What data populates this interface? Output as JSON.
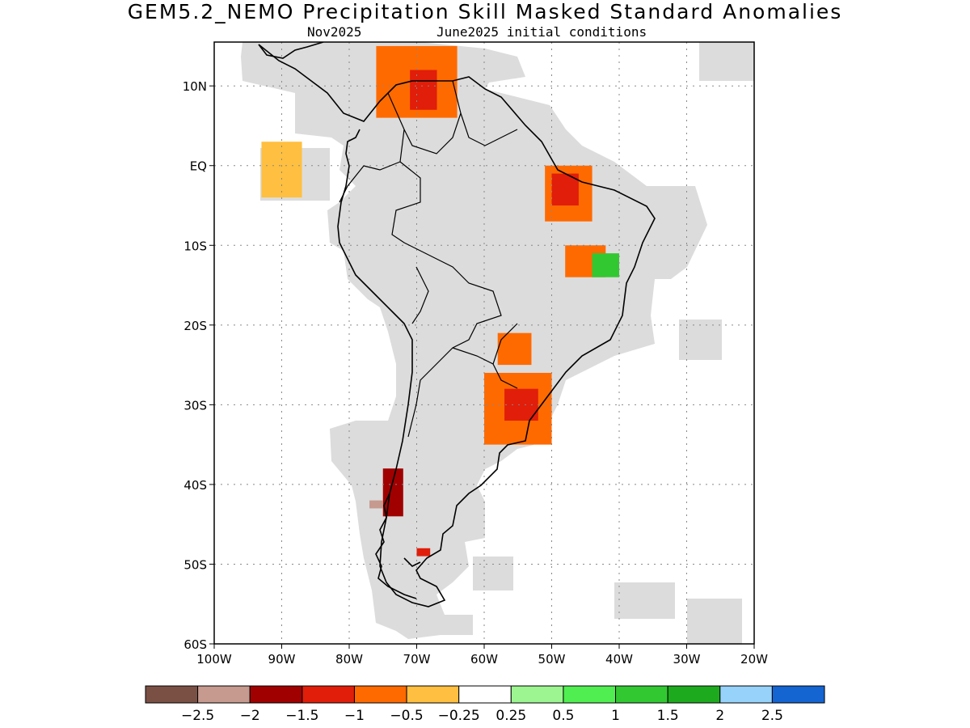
{
  "title": "GEM5.2_NEMO Precipitation Skill Masked Standard Anomalies",
  "subtitle_left": "Nov2025",
  "subtitle_right": "June2025 initial conditions",
  "map": {
    "lon_range": [
      -100,
      -20
    ],
    "lat_range": [
      -60,
      15.5
    ],
    "grid_lines": "dotted",
    "land_outline_color": "#000000",
    "skill_mask_color": "#dcdcdc",
    "ocean_color": "#ffffff",
    "lat_ticks": [
      {
        "value": 10,
        "label": "10N"
      },
      {
        "value": 0,
        "label": "EQ"
      },
      {
        "value": -10,
        "label": "10S"
      },
      {
        "value": -20,
        "label": "20S"
      },
      {
        "value": -30,
        "label": "30S"
      },
      {
        "value": -40,
        "label": "40S"
      },
      {
        "value": -50,
        "label": "50S"
      },
      {
        "value": -60,
        "label": "60S"
      }
    ],
    "lon_ticks": [
      {
        "value": -100,
        "label": "100W"
      },
      {
        "value": -90,
        "label": "90W"
      },
      {
        "value": -80,
        "label": "80W"
      },
      {
        "value": -70,
        "label": "70W"
      },
      {
        "value": -60,
        "label": "60W"
      },
      {
        "value": -50,
        "label": "50W"
      },
      {
        "value": -40,
        "label": "40W"
      },
      {
        "value": -30,
        "label": "30W"
      },
      {
        "value": -20,
        "label": "20W"
      }
    ]
  },
  "colorbar": {
    "colors": [
      "#7a5045",
      "#c69a8e",
      "#a00000",
      "#e01e0a",
      "#ff6a00",
      "#ffbf40",
      "#ffffff",
      "#9cf590",
      "#50ee50",
      "#32c832",
      "#1eaa1e",
      "#96d2fa",
      "#1464d2"
    ],
    "labels": [
      "−2.5",
      "−2",
      "−1.5",
      "−1",
      "−0.5",
      "−0.25",
      "0.25",
      "0.5",
      "1",
      "1.5",
      "2",
      "2.5"
    ]
  },
  "anomaly_regions": [
    {
      "name": "caribbean-venezuela",
      "lon_range": [
        -76,
        -64
      ],
      "lat_range": [
        6,
        15
      ],
      "category": "−0.5"
    },
    {
      "name": "venezuela-core",
      "lon_range": [
        -71,
        -67
      ],
      "lat_range": [
        7,
        12
      ],
      "category": "−1"
    },
    {
      "name": "pacific-galapagos",
      "lon_range": [
        -93,
        -87
      ],
      "lat_range": [
        -4,
        3
      ],
      "category": "−0.25"
    },
    {
      "name": "ne-brazil-para",
      "lon_range": [
        -51,
        -44
      ],
      "lat_range": [
        -7,
        0
      ],
      "category": "−0.5"
    },
    {
      "name": "ne-brazil-core",
      "lon_range": [
        -50,
        -46
      ],
      "lat_range": [
        -5,
        -1
      ],
      "category": "−1"
    },
    {
      "name": "bahia",
      "lon_range": [
        -48,
        -42
      ],
      "lat_range": [
        -14,
        -10
      ],
      "category": "−0.5"
    },
    {
      "name": "bahia-green",
      "lon_range": [
        -44,
        -40
      ],
      "lat_range": [
        -14,
        -11
      ],
      "category": "1"
    },
    {
      "name": "paraguay-brazil",
      "lon_range": [
        -58,
        -53
      ],
      "lat_range": [
        -25,
        -21
      ],
      "category": "−0.5"
    },
    {
      "name": "south-brazil-uruguay",
      "lon_range": [
        -60,
        -50
      ],
      "lat_range": [
        -35,
        -26
      ],
      "category": "−0.5"
    },
    {
      "name": "rio-grande-core",
      "lon_range": [
        -57,
        -52
      ],
      "lat_range": [
        -32,
        -28
      ],
      "category": "−1"
    },
    {
      "name": "southern-chile",
      "lon_range": [
        -75,
        -72
      ],
      "lat_range": [
        -44,
        -38
      ],
      "category": "−1.5"
    },
    {
      "name": "chiloe-west",
      "lon_range": [
        -77,
        -75
      ],
      "lat_range": [
        -43,
        -42
      ],
      "category": "−2"
    },
    {
      "name": "patagonia-east",
      "lon_range": [
        -70,
        -68
      ],
      "lat_range": [
        -49,
        -48
      ],
      "category": "−1"
    }
  ]
}
